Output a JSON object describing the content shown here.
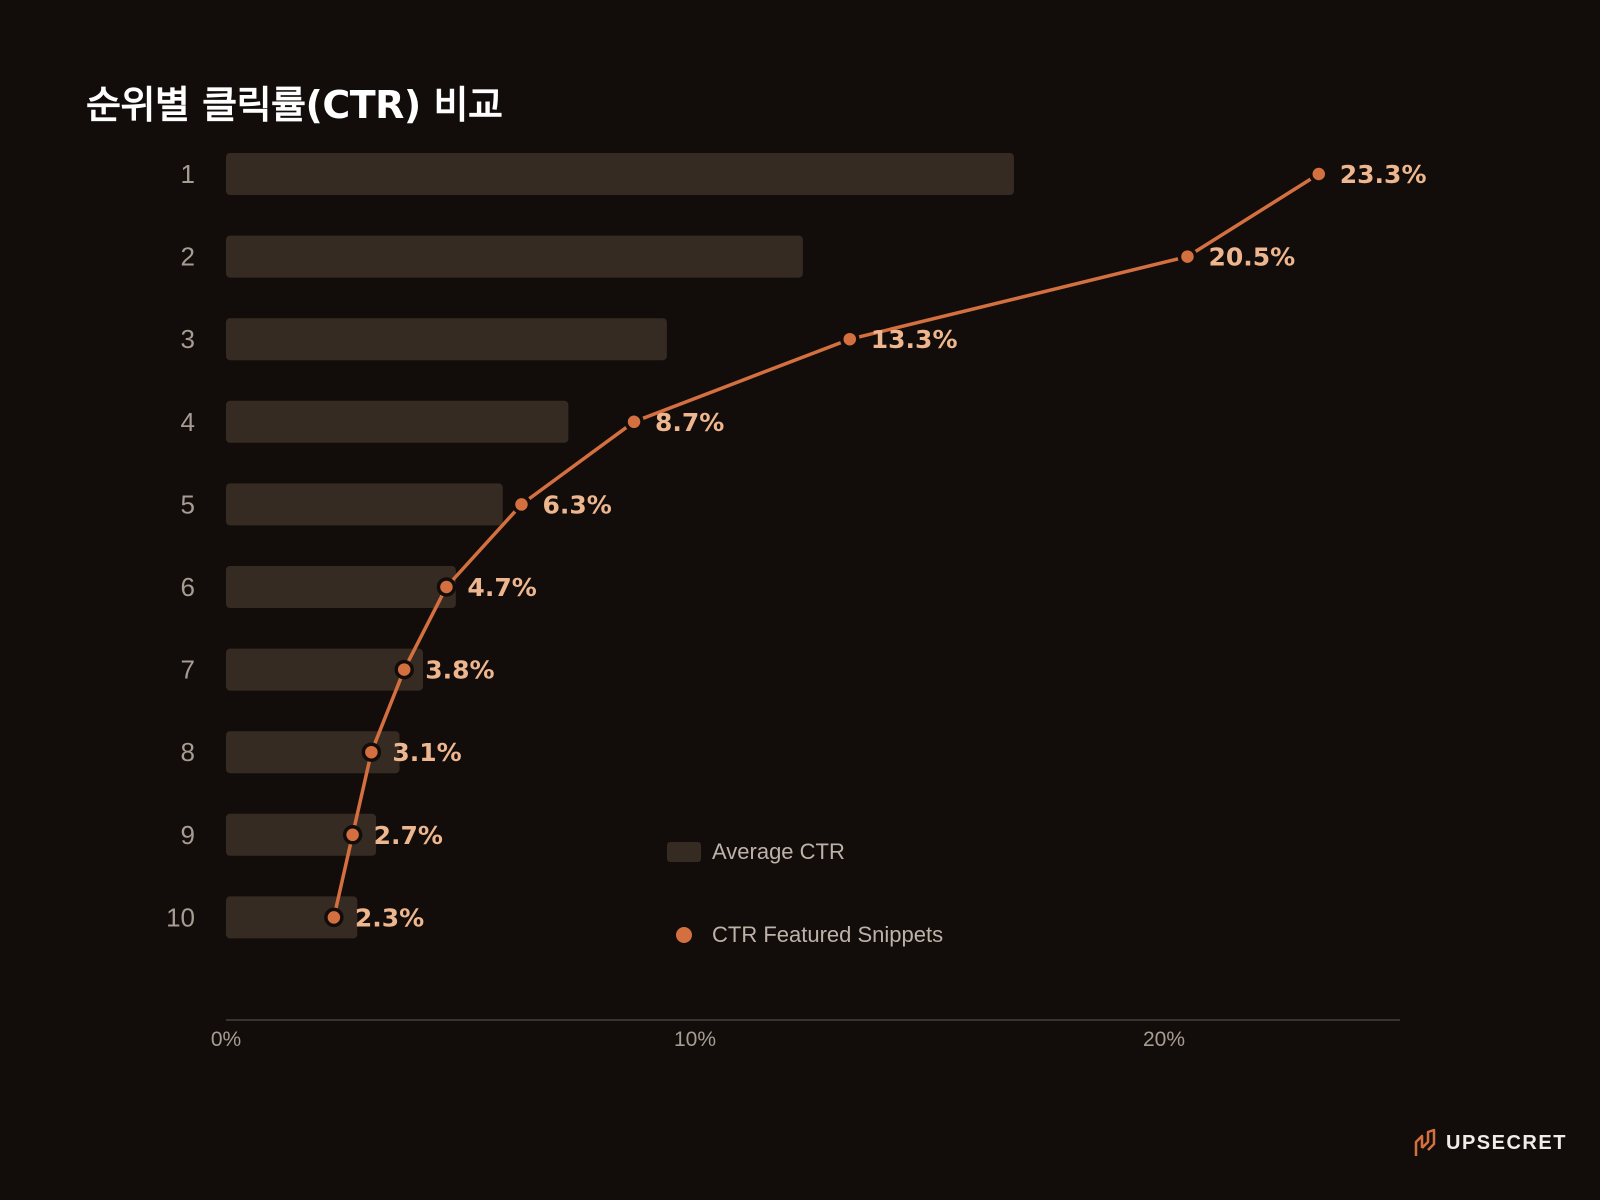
{
  "page": {
    "title": "순위별 클릭률(CTR) 비교",
    "brand": "UPSECRET"
  },
  "colors": {
    "background": "#120d0a",
    "bar": "#362b23",
    "line": "#d4703f",
    "label": "#eeb68f",
    "axis_text": "#a79c92",
    "legend_text": "#bdb2a8"
  },
  "chart_data": {
    "type": "bar",
    "orientation": "horizontal",
    "title": "순위별 클릭률(CTR) 비교",
    "categories": [
      "1",
      "2",
      "3",
      "4",
      "5",
      "6",
      "7",
      "8",
      "9",
      "10"
    ],
    "series": [
      {
        "name": "Average CTR",
        "type": "bar",
        "values": [
          16.8,
          12.3,
          9.4,
          7.3,
          5.9,
          4.9,
          4.2,
          3.7,
          3.2,
          2.8
        ]
      },
      {
        "name": "CTR Featured Snippets",
        "type": "line",
        "values": [
          23.3,
          20.5,
          13.3,
          8.7,
          6.3,
          4.7,
          3.8,
          3.1,
          2.7,
          2.3
        ],
        "labels": [
          "23.3%",
          "20.5%",
          "13.3%",
          "8.7%",
          "6.3%",
          "4.7%",
          "3.8%",
          "3.1%",
          "2.7%",
          "2.3%"
        ]
      }
    ],
    "x_ticks": [
      0,
      10,
      20
    ],
    "x_tick_labels": [
      "0%",
      "10%",
      "20%"
    ],
    "xlim": [
      0,
      25
    ],
    "grid": false,
    "legend_position": "lower-center"
  }
}
